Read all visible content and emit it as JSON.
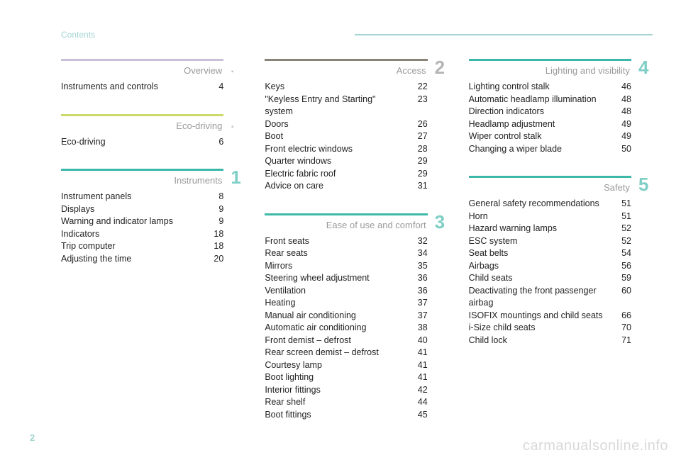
{
  "header": {
    "label": "Contents"
  },
  "page_number": "2",
  "watermark": "carmanualsonline.info",
  "colors": {
    "overview_rule": "#c9bfd9",
    "eco_rule": "#cdd96a",
    "teal_rule": "#3cb8a8",
    "access_rule": "#8a8478",
    "ease_rule": "#3cb8a8",
    "num_teal": "#7fcfc6",
    "num_gray": "#bdbdbd",
    "title_gray": "#9a9a9a"
  },
  "columns": [
    {
      "sections": [
        {
          "title": "Overview",
          "rule_color": "#c9bfd9",
          "number": ".",
          "number_style": "dot",
          "items": [
            {
              "label": "Instruments and controls",
              "page": "4"
            }
          ]
        },
        {
          "title": "Eco-driving",
          "rule_color": "#cdd96a",
          "number": ".",
          "number_style": "dot",
          "items": [
            {
              "label": "Eco-driving",
              "page": "6"
            }
          ]
        },
        {
          "title": "Instruments",
          "rule_color": "#3cb8a8",
          "number": "1",
          "number_color": "#7fcfc6",
          "items": [
            {
              "label": "Instrument panels",
              "page": "8"
            },
            {
              "label": "Displays",
              "page": "9"
            },
            {
              "label": "Warning and indicator lamps",
              "page": "9"
            },
            {
              "label": "Indicators",
              "page": "18"
            },
            {
              "label": "Trip computer",
              "page": "18"
            },
            {
              "label": "Adjusting the time",
              "page": "20"
            }
          ]
        }
      ]
    },
    {
      "sections": [
        {
          "title": "Access",
          "rule_color": "#8a8478",
          "number": "2",
          "number_color": "#b5b5b5",
          "items": [
            {
              "label": "Keys",
              "page": "22"
            },
            {
              "label": "\"Keyless Entry and Starting\" system",
              "page": "23"
            },
            {
              "label": "Doors",
              "page": "26"
            },
            {
              "label": "Boot",
              "page": "27"
            },
            {
              "label": "Front electric windows",
              "page": "28"
            },
            {
              "label": "Quarter windows",
              "page": "29"
            },
            {
              "label": "Electric fabric roof",
              "page": "29"
            },
            {
              "label": "Advice on care",
              "page": "31"
            }
          ]
        },
        {
          "title": "Ease of use and comfort",
          "rule_color": "#3cb8a8",
          "number": "3",
          "number_color": "#7fcfc6",
          "items": [
            {
              "label": "Front seats",
              "page": "32"
            },
            {
              "label": "Rear seats",
              "page": "34"
            },
            {
              "label": "Mirrors",
              "page": "35"
            },
            {
              "label": "Steering wheel adjustment",
              "page": "36"
            },
            {
              "label": "Ventilation",
              "page": "36"
            },
            {
              "label": "Heating",
              "page": "37"
            },
            {
              "label": "Manual air conditioning",
              "page": "37"
            },
            {
              "label": "Automatic air conditioning",
              "page": "38"
            },
            {
              "label": "Front demist – defrost",
              "page": "40"
            },
            {
              "label": "Rear screen demist – defrost",
              "page": "41"
            },
            {
              "label": "Courtesy lamp",
              "page": "41"
            },
            {
              "label": "Boot lighting",
              "page": "41"
            },
            {
              "label": "Interior fittings",
              "page": "42"
            },
            {
              "label": "Rear shelf",
              "page": "44"
            },
            {
              "label": "Boot fittings",
              "page": "45"
            }
          ]
        }
      ]
    },
    {
      "sections": [
        {
          "title": "Lighting and visibility",
          "rule_color": "#3cb8a8",
          "number": "4",
          "number_color": "#7fcfc6",
          "items": [
            {
              "label": "Lighting control stalk",
              "page": "46"
            },
            {
              "label": "Automatic headlamp illumination",
              "page": "48"
            },
            {
              "label": "Direction indicators",
              "page": "48"
            },
            {
              "label": "Headlamp adjustment",
              "page": "49"
            },
            {
              "label": "Wiper control stalk",
              "page": "49"
            },
            {
              "label": "Changing a wiper blade",
              "page": "50"
            }
          ]
        },
        {
          "title": "Safety",
          "rule_color": "#3cb8a8",
          "number": "5",
          "number_color": "#7fcfc6",
          "items": [
            {
              "label": "General safety recommendations",
              "page": "51"
            },
            {
              "label": "Horn",
              "page": "51"
            },
            {
              "label": "Hazard warning lamps",
              "page": "52"
            },
            {
              "label": "ESC system",
              "page": "52"
            },
            {
              "label": "Seat belts",
              "page": "54"
            },
            {
              "label": "Airbags",
              "page": "56"
            },
            {
              "label": "Child seats",
              "page": "59"
            },
            {
              "label": "Deactivating the front passenger airbag",
              "page": "60"
            },
            {
              "label": "ISOFIX mountings and child seats",
              "page": "66"
            },
            {
              "label": "i-Size child seats",
              "page": "70"
            },
            {
              "label": "Child lock",
              "page": "71"
            }
          ]
        }
      ]
    }
  ]
}
